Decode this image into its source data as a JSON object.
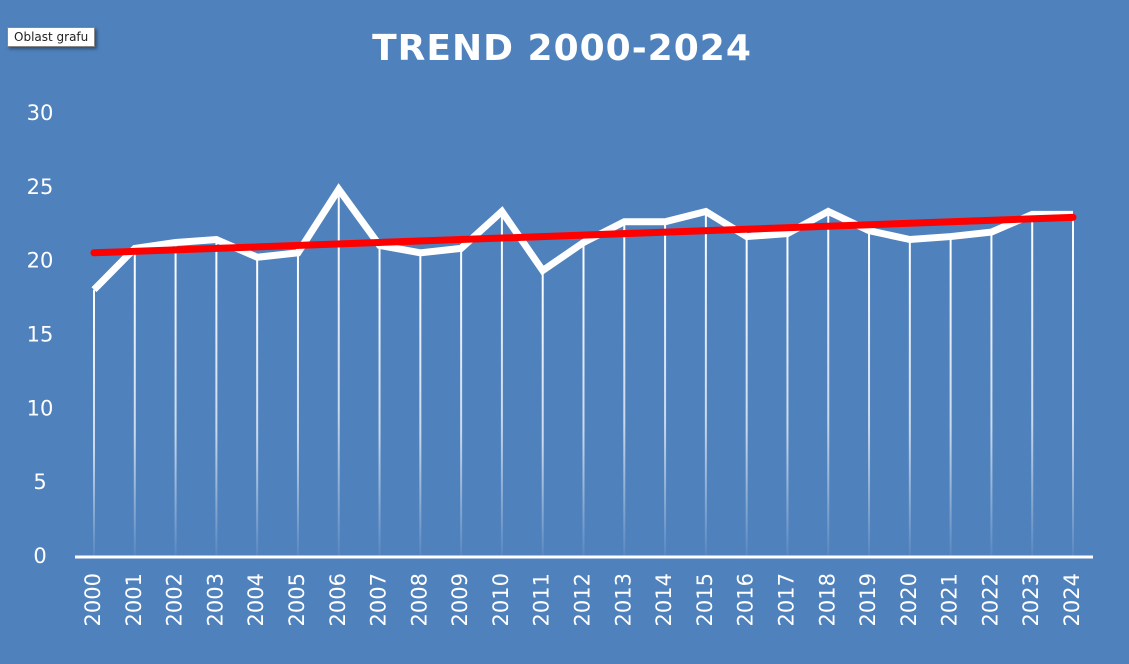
{
  "chart_data": {
    "type": "line",
    "title": "TREND 2000-2024",
    "tooltip": "Oblast grafu",
    "categories": [
      "2000",
      "2001",
      "2002",
      "2003",
      "2004",
      "2005",
      "2006",
      "2007",
      "2008",
      "2009",
      "2010",
      "2011",
      "2012",
      "2013",
      "2014",
      "2015",
      "2016",
      "2017",
      "2018",
      "2019",
      "2020",
      "2021",
      "2022",
      "2023",
      "2024"
    ],
    "values": [
      18.1,
      20.9,
      21.3,
      21.5,
      20.3,
      20.6,
      24.9,
      21.1,
      20.6,
      20.9,
      23.4,
      19.4,
      21.3,
      22.7,
      22.7,
      23.4,
      21.7,
      21.9,
      23.4,
      22.1,
      21.5,
      21.7,
      22.0,
      23.2,
      23.2
    ],
    "color": "#ffffff",
    "trend": {
      "color": "#ff0000",
      "values": [
        20.6,
        23.0
      ]
    },
    "background": "#4f81bd",
    "ylim": [
      0,
      30
    ],
    "yticks": [
      0,
      5,
      10,
      15,
      20,
      25,
      30
    ],
    "drop_lines": true
  }
}
